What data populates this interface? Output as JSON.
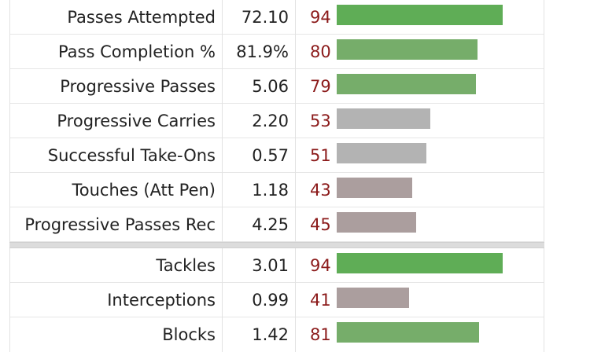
{
  "chart_data": {
    "type": "bar",
    "sections": [
      {
        "rows": [
          {
            "stat": "Passes Attempted",
            "value": "72.10",
            "percentile": 94,
            "color": "#5fad56"
          },
          {
            "stat": "Pass Completion %",
            "value": "81.9%",
            "percentile": 80,
            "color": "#76ad6a"
          },
          {
            "stat": "Progressive Passes",
            "value": "5.06",
            "percentile": 79,
            "color": "#76ad6a"
          },
          {
            "stat": "Progressive Carries",
            "value": "2.20",
            "percentile": 53,
            "color": "#b3b3b3"
          },
          {
            "stat": "Successful Take-Ons",
            "value": "0.57",
            "percentile": 51,
            "color": "#b3b3b3"
          },
          {
            "stat": "Touches (Att Pen)",
            "value": "1.18",
            "percentile": 43,
            "color": "#ab9e9e"
          },
          {
            "stat": "Progressive Passes Rec",
            "value": "4.25",
            "percentile": 45,
            "color": "#ab9e9e"
          }
        ]
      },
      {
        "rows": [
          {
            "stat": "Tackles",
            "value": "3.01",
            "percentile": 94,
            "color": "#5fad56"
          },
          {
            "stat": "Interceptions",
            "value": "0.99",
            "percentile": 41,
            "color": "#ab9e9e"
          },
          {
            "stat": "Blocks",
            "value": "1.42",
            "percentile": 81,
            "color": "#76ad6a"
          }
        ]
      }
    ],
    "xlim": [
      0,
      100
    ]
  }
}
